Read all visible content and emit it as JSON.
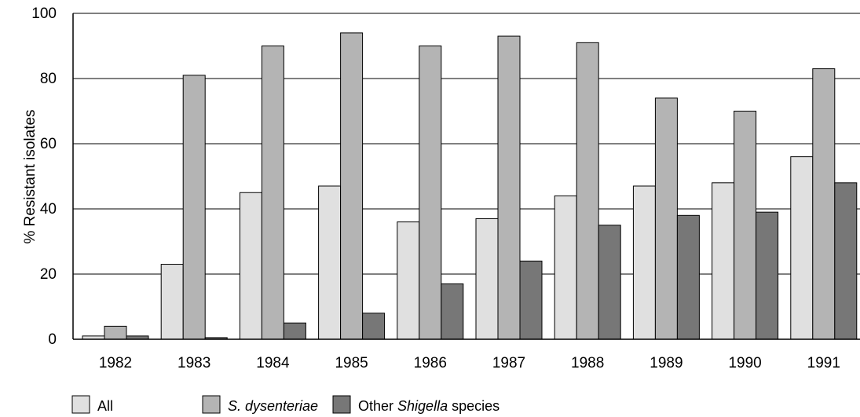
{
  "chart_data": {
    "type": "bar",
    "title": "",
    "xlabel": "",
    "ylabel": "% Resistant isolates",
    "ylim": [
      0,
      100
    ],
    "yticks": [
      0,
      20,
      40,
      60,
      80,
      100
    ],
    "grid": "horizontal",
    "legend_position": "bottom",
    "categories": [
      "1982",
      "1983",
      "1984",
      "1985",
      "1986",
      "1987",
      "1988",
      "1989",
      "1990",
      "1991"
    ],
    "series": [
      {
        "name": "All",
        "color": "#e0e0e0",
        "values": [
          1,
          23,
          45,
          47,
          36,
          37,
          44,
          47,
          48,
          56
        ]
      },
      {
        "name": "S. dysenteriae",
        "color": "#b4b4b4",
        "values": [
          4,
          81,
          90,
          94,
          90,
          93,
          91,
          74,
          70,
          83
        ]
      },
      {
        "name": "Other Shigella species",
        "color": "#777777",
        "values": [
          1,
          0.5,
          5,
          8,
          17,
          24,
          35,
          38,
          39,
          48
        ]
      }
    ],
    "legend": [
      {
        "parts": [
          {
            "text": "All",
            "italic": false
          }
        ]
      },
      {
        "parts": [
          {
            "text": "S. dysenteriae",
            "italic": true
          }
        ]
      },
      {
        "parts": [
          {
            "text": "Other ",
            "italic": false
          },
          {
            "text": "Shigella",
            "italic": true
          },
          {
            "text": " species",
            "italic": false
          }
        ]
      }
    ]
  }
}
